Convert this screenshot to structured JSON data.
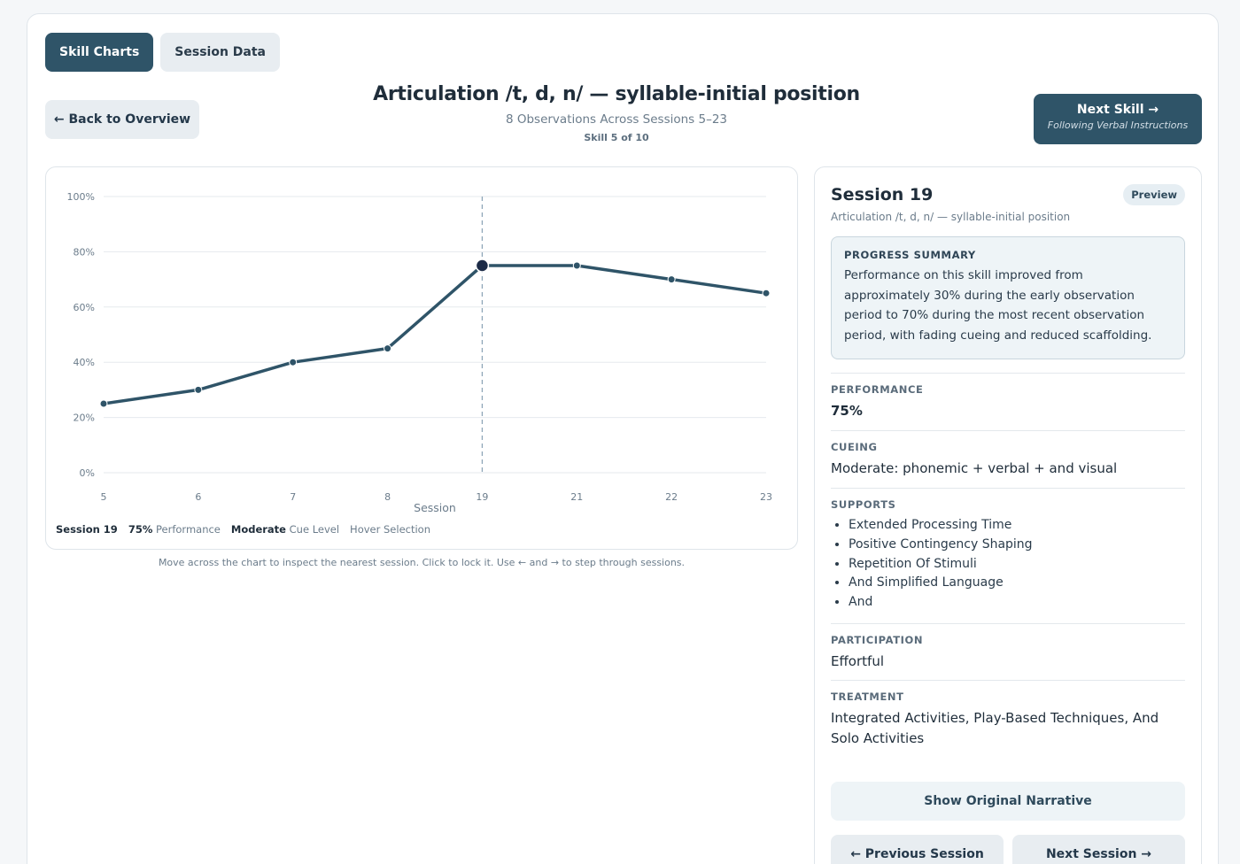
{
  "tabs": [
    {
      "label": "Skill Charts",
      "active": true
    },
    {
      "label": "Session Data",
      "active": false
    }
  ],
  "header": {
    "back_label": "← Back to Overview",
    "title": "Articulation /t, d, n/ — syllable-initial position",
    "subtitle": "8 Observations Across Sessions 5–23",
    "skill_counter": "Skill 5 of 10",
    "next_skill_label": "Next Skill →",
    "next_skill_name": "Following Verbal Instructions"
  },
  "chart_data": {
    "type": "line",
    "x": [
      "5",
      "6",
      "7",
      "8",
      "19",
      "21",
      "22",
      "23"
    ],
    "series": [
      {
        "values": [
          25,
          30,
          40,
          45,
          75,
          75,
          70,
          65
        ]
      }
    ],
    "title": "",
    "xlabel": "Session",
    "ylabel": "",
    "ylim": [
      0,
      100
    ],
    "yticks": [
      "0%",
      "20%",
      "40%",
      "60%",
      "80%",
      "100%"
    ],
    "grid": true,
    "selected_index": 4,
    "line_color": "#2f5468"
  },
  "legend": {
    "session": "Session 19",
    "perf_value": "75%",
    "perf_label": "Performance",
    "cue_value": "Moderate",
    "cue_label": "Cue Level",
    "mode": "Hover Selection"
  },
  "chart_hint": "Move across the chart to inspect the nearest session. Click to lock it. Use ← and → to step through sessions.",
  "session_panel": {
    "title": "Session 19",
    "subtitle": "Articulation /t, d, n/ — syllable-initial position",
    "badge": "Preview",
    "summary_heading": "PROGRESS SUMMARY",
    "summary_text": "Performance on this skill improved from approximately 30% during the early observation period to 70% during the most recent observation period, with fading cueing and reduced scaffolding.",
    "performance_label": "PERFORMANCE",
    "performance_value": "75%",
    "cueing_label": "CUEING",
    "cueing_value": "Moderate: phonemic + verbal + and visual",
    "supports_label": "SUPPORTS",
    "supports": [
      "Extended Processing Time",
      "Positive Contingency Shaping",
      "Repetition Of Stimuli",
      "And Simplified Language",
      "And"
    ],
    "participation_label": "PARTICIPATION",
    "participation_value": "Effortful",
    "treatment_label": "TREATMENT",
    "treatment_value": "Integrated Activities, Play-Based Techniques, And Solo Activities",
    "show_narrative_label": "Show Original Narrative",
    "prev_label": "← Previous Session",
    "next_label": "Next Session →"
  }
}
